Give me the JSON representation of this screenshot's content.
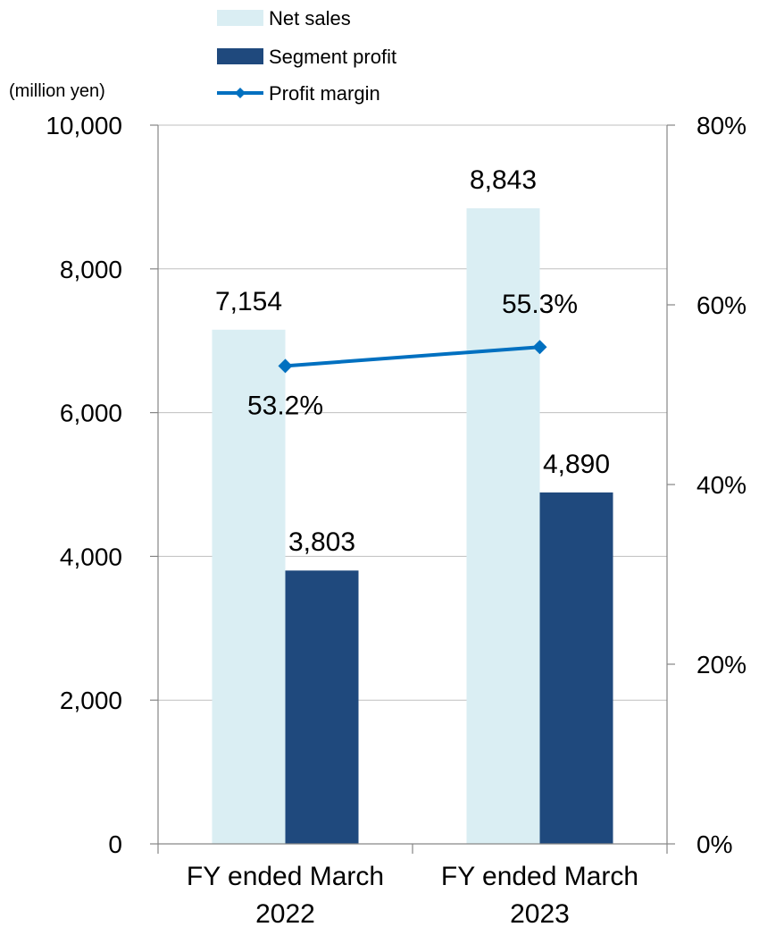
{
  "chart_data": {
    "type": "bar",
    "title": "",
    "categories": [
      "FY ended March 2022",
      "FY ended March 2023"
    ],
    "category_lines": [
      [
        "FY ended March",
        "2022"
      ],
      [
        "FY ended March",
        "2023"
      ]
    ],
    "series": [
      {
        "name": "Net sales",
        "type": "bar",
        "axis": "left",
        "values": [
          7154,
          8843
        ],
        "labels": [
          "7,154",
          "8,843"
        ],
        "color": "#daeef3"
      },
      {
        "name": "Segment profit",
        "type": "bar",
        "axis": "left",
        "values": [
          3803,
          4890
        ],
        "labels": [
          "3,803",
          "4,890"
        ],
        "color": "#1f497d"
      },
      {
        "name": "Profit margin",
        "type": "line",
        "axis": "right",
        "values": [
          53.2,
          55.3
        ],
        "labels": [
          "53.2%",
          "55.3%"
        ],
        "color": "#0070c0"
      }
    ],
    "y_left": {
      "unit_label": "(million yen)",
      "ylim": [
        0,
        10000
      ],
      "ticks": [
        0,
        2000,
        4000,
        6000,
        8000,
        10000
      ],
      "tick_labels": [
        "0",
        "2,000",
        "4,000",
        "6,000",
        "8,000",
        "10,000"
      ]
    },
    "y_right": {
      "ylim": [
        0,
        80
      ],
      "ticks": [
        0,
        20,
        40,
        60,
        80
      ],
      "tick_labels": [
        "0%",
        "20%",
        "40%",
        "60%",
        "80%"
      ]
    },
    "grid": true,
    "legend_position": "top"
  }
}
